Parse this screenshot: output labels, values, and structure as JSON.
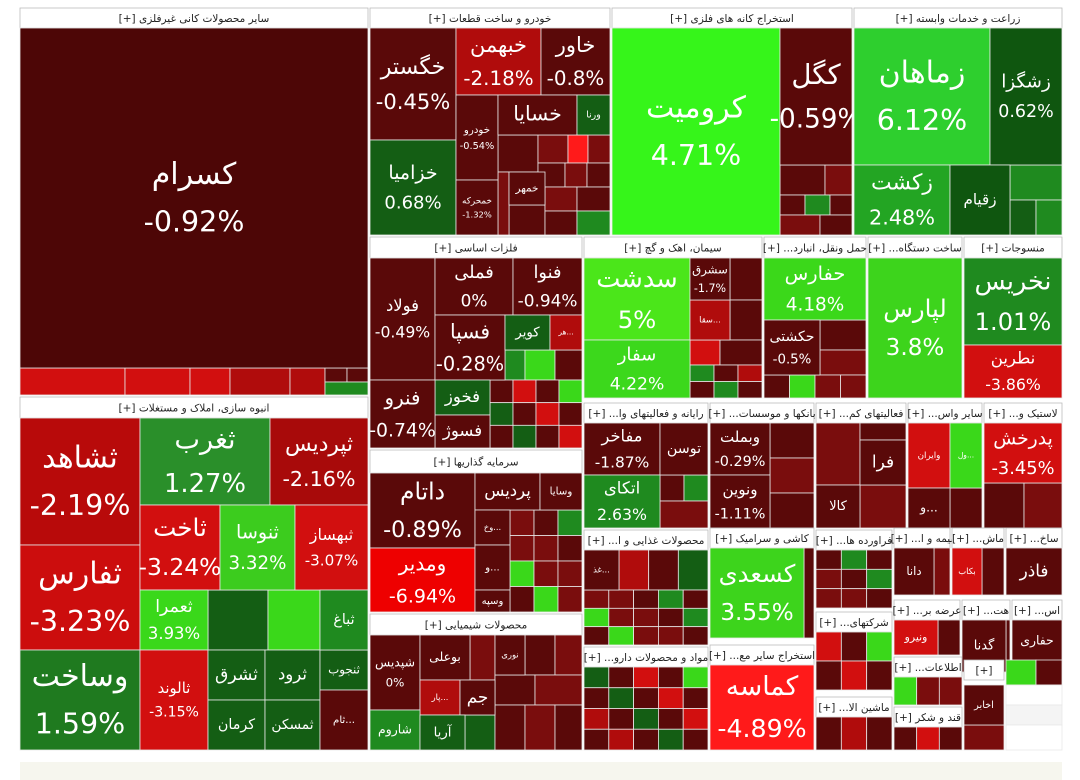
{
  "sectors": [
    {
      "title": "سایر محصولات کانی غیرفلزی [+]",
      "tiles": [
        {
          "name": "کسرام",
          "change": "-0.92%",
          "color": "#4d0606"
        }
      ]
    },
    {
      "title": "خودرو و ساخت قطعات [+]",
      "tiles": [
        {
          "name": "خگستر",
          "change": "-0.45%",
          "color": "#5a0909"
        },
        {
          "name": "خبهمن",
          "change": "-2.18%",
          "color": "#b00c0c"
        },
        {
          "name": "خاور",
          "change": "-0.8%",
          "color": "#5a0909"
        },
        {
          "name": "خزامیا",
          "change": "0.68%",
          "color": "#145e14"
        },
        {
          "name": "خودرو",
          "change": "-0.54%",
          "color": "#5a0909"
        },
        {
          "name": "خسایا",
          "color": "#5a0909"
        },
        {
          "name": "ورنا",
          "color": "#145e14"
        },
        {
          "name": "خمهر",
          "color": "#5a0909"
        },
        {
          "name": "خمحرکه",
          "change": "-1.32%",
          "color": "#5a0909"
        }
      ]
    },
    {
      "title": "استخراج کانه های فلزی [+]",
      "tiles": [
        {
          "name": "کرومیت",
          "change": "4.71%",
          "color": "#36f51a"
        },
        {
          "name": "کگل",
          "change": "-0.59%",
          "color": "#5a0909"
        }
      ]
    },
    {
      "title": "زراعت و خدمات وابسته [+]",
      "tiles": [
        {
          "name": "زماهان",
          "change": "6.12%",
          "color": "#2ecf2e"
        },
        {
          "name": "زشگزا",
          "change": "0.62%",
          "color": "#0f560f"
        },
        {
          "name": "زکشت",
          "change": "2.48%",
          "color": "#23a523"
        },
        {
          "name": "زقیام",
          "color": "#0f560f"
        }
      ]
    },
    {
      "title": "انبوه سازی، املاک و مستغلات [+]",
      "tiles": [
        {
          "name": "ثشاهد",
          "change": "-2.19%",
          "color": "#b80a0a"
        },
        {
          "name": "ثفارس",
          "change": "-3.23%",
          "color": "#cc0d0d"
        },
        {
          "name": "وساخت",
          "change": "1.59%",
          "color": "#1f7a1f"
        },
        {
          "name": "ثغرب",
          "change": "1.27%",
          "color": "#2a8f2a"
        },
        {
          "name": "ثپردیس",
          "change": "-2.16%",
          "color": "#a80a0a"
        },
        {
          "name": "ثاخت",
          "change": "-3.24%",
          "color": "#d20f0f"
        },
        {
          "name": "ثنوسا",
          "change": "3.32%",
          "color": "#3ccc1e"
        },
        {
          "name": "ثبهساز",
          "change": "-3.07%",
          "color": "#d20f0f"
        },
        {
          "name": "ثعمرا",
          "change": "3.93%",
          "color": "#3ad81a"
        },
        {
          "name": "ثالوند",
          "change": "-3.15%",
          "color": "#d20f0f"
        },
        {
          "name": "ثشرق",
          "color": "#145e14"
        },
        {
          "name": "ثرود",
          "color": "#145e14"
        },
        {
          "name": "ثنجوب",
          "color": "#145e14"
        },
        {
          "name": "کرمان",
          "color": "#145e14"
        },
        {
          "name": "ثمسکن",
          "color": "#145e14"
        },
        {
          "name": "...ثام",
          "color": "#5a0909"
        },
        {
          "name": "ثباغ",
          "color": "#1f8a1f"
        }
      ]
    },
    {
      "title": "فلزات اساسی [+]",
      "tiles": [
        {
          "name": "فولاد",
          "change": "-0.49%",
          "color": "#5a0909"
        },
        {
          "name": "فملی",
          "change": "0%",
          "color": "#5a0909"
        },
        {
          "name": "فنوا",
          "change": "-0.94%",
          "color": "#5a0909"
        },
        {
          "name": "فسپا",
          "change": "-0.28%",
          "color": "#5a0909"
        },
        {
          "name": "کویر",
          "color": "#145e14"
        },
        {
          "name": "...هر",
          "color": "#b00c0c"
        },
        {
          "name": "فخوز",
          "color": "#145e14"
        },
        {
          "name": "فسوژ",
          "color": "#5a0909"
        },
        {
          "name": "فنرو",
          "change": "-0.74%",
          "color": "#5a0909"
        }
      ]
    },
    {
      "title": "سرمایه گذاریها [+]",
      "tiles": [
        {
          "name": "داتام",
          "change": "-0.89%",
          "color": "#5a0909"
        },
        {
          "name": "ومدیر",
          "change": "-6.94%",
          "color": "#ee0000"
        },
        {
          "name": "پردیس",
          "color": "#5a0909"
        },
        {
          "name": "وسایا",
          "color": "#5a0909"
        },
        {
          "name": "...وخ",
          "color": "#5a0909"
        },
        {
          "name": "...و",
          "color": "#5a0909"
        },
        {
          "name": "وسپه",
          "color": "#5a0909"
        }
      ]
    },
    {
      "title": "محصولات شیمیایی [+]",
      "tiles": [
        {
          "name": "شپدیس",
          "change": "0%",
          "color": "#5a0909"
        },
        {
          "name": "بوعلی",
          "color": "#5a0909"
        },
        {
          "name": "...پار",
          "color": "#b00c0c"
        },
        {
          "name": "نوری",
          "color": "#5a0909"
        },
        {
          "name": "جم",
          "color": "#5a0909"
        },
        {
          "name": "شاروم",
          "color": "#1f8a1f"
        },
        {
          "name": "آریا",
          "color": "#145e14"
        }
      ]
    },
    {
      "title": "سیمان، اهک و گچ [+]",
      "tiles": [
        {
          "name": "سدشت",
          "change": "5%",
          "color": "#4be61a"
        },
        {
          "name": "سفار",
          "change": "4.22%",
          "color": "#3cd81c"
        },
        {
          "name": "...سقا",
          "color": "#b00c0c"
        },
        {
          "name": "سشرق",
          "change": "-1.7%",
          "color": "#5a0909"
        }
      ]
    },
    {
      "title": "حمل ونقل، انبارد... [+]",
      "tiles": [
        {
          "name": "حفارس",
          "change": "4.18%",
          "color": "#3bd81a"
        },
        {
          "name": "حکشتی",
          "change": "-0.5%",
          "color": "#5a0909"
        }
      ]
    },
    {
      "title": "ساخت دستگاه... [+]",
      "tiles": [
        {
          "name": "لپارس",
          "change": "3.8%",
          "color": "#3dd41c"
        }
      ]
    },
    {
      "title": "منسوجات [+]",
      "tiles": [
        {
          "name": "نخریس",
          "change": "1.01%",
          "color": "#1f8a1f"
        },
        {
          "name": "نطرین",
          "change": "-3.86%",
          "color": "#d20f0f"
        }
      ]
    },
    {
      "title": "رایانه و فعالیتهای وا... [+]",
      "tiles": [
        {
          "name": "مفاخر",
          "change": "-1.87%",
          "color": "#5a0909"
        },
        {
          "name": "توسن",
          "color": "#5a0909"
        },
        {
          "name": "اتکای",
          "change": "2.63%",
          "color": "#1f8a1f"
        }
      ]
    },
    {
      "title": "بانکها و موسسات... [+]",
      "tiles": [
        {
          "name": "وبملت",
          "change": "-0.29%",
          "color": "#5a0909"
        },
        {
          "name": "ونوین",
          "change": "-1.11%",
          "color": "#5a0909"
        }
      ]
    },
    {
      "title": "فعالیتهای کم... [+]",
      "tiles": [
        {
          "name": "فرا",
          "color": "#5a0909"
        },
        {
          "name": "کالا",
          "color": "#5a0909"
        }
      ]
    },
    {
      "title": "سایر واس... [+]",
      "tiles": [
        {
          "name": "وایران",
          "color": "#d20f0f"
        },
        {
          "name": "...ول",
          "color": "#3ad81a"
        },
        {
          "name": "...و",
          "color": "#5a0909"
        }
      ]
    },
    {
      "title": "لاستیک و... [+]",
      "tiles": [
        {
          "name": "پدرخش",
          "change": "-3.45%",
          "color": "#d20f0f"
        }
      ]
    },
    {
      "title": "محصولات غذایی و ا... [+]",
      "tiles": [
        {
          "name": "...غذ",
          "color": "#5a0909"
        }
      ]
    },
    {
      "title": "کاشی و سرامیک [+]",
      "tiles": [
        {
          "name": "کسعدی",
          "change": "3.55%",
          "color": "#3dd41c"
        }
      ]
    },
    {
      "title": "مواد و محصولات دارو... [+]"
    },
    {
      "title": "استخراج سایر مع... [+]",
      "tiles": [
        {
          "name": "کماسه",
          "change": "-4.89%",
          "color": "#ff1a1a"
        }
      ]
    },
    {
      "title": "فراورده ها... [+]"
    },
    {
      "title": "شرکتهای... [+]"
    },
    {
      "title": "ماشین الا... [+]"
    },
    {
      "title": "بیمه و ا... [+]",
      "tiles": [
        {
          "name": "دانا",
          "color": "#5a0909"
        }
      ]
    },
    {
      "title": "ماش... [+]",
      "tiles": [
        {
          "name": "بکاب",
          "color": "#d20f0f"
        }
      ]
    },
    {
      "title": "ساخ... [+]",
      "tiles": [
        {
          "name": "فاذر",
          "color": "#5a0909"
        }
      ]
    },
    {
      "title": "عرضه بر... [+]",
      "tiles": [
        {
          "name": "ونیرو",
          "color": "#d20f0f"
        }
      ]
    },
    {
      "title": "هت... [+]",
      "tiles": [
        {
          "name": "گدنا",
          "color": "#5a0909"
        }
      ]
    },
    {
      "title": "اس... [+]",
      "tiles": [
        {
          "name": "حفاری",
          "color": "#5a0909"
        }
      ]
    },
    {
      "title": "اطلاعات... [+]"
    },
    {
      "title": "قند و شکر [+]"
    },
    {
      "title": "[+]",
      "tiles": [
        {
          "name": "اخابر",
          "color": "#5a0909"
        }
      ]
    }
  ]
}
